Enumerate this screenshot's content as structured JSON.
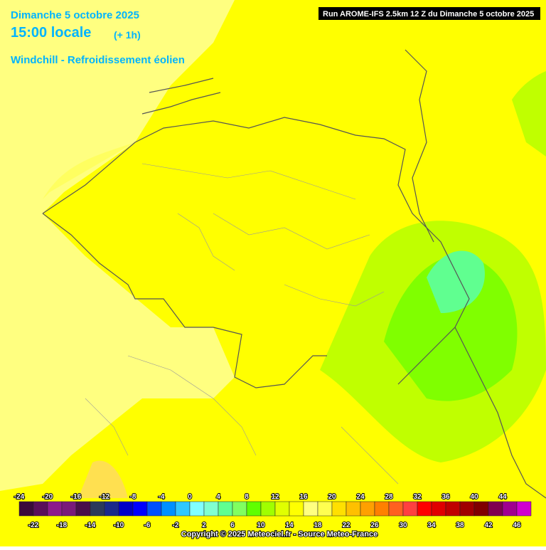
{
  "header": {
    "date": "Dimanche 5 octobre 2025",
    "time": "15:00 locale",
    "offset": "(+ 1h)",
    "parameter": "Windchill - Refroidissement éolien",
    "run": "Run AROME-IFS 2.5km 12 Z du Dimanche 5 octobre 2025"
  },
  "legend": {
    "labels": [
      -24,
      -22,
      -20,
      -18,
      -16,
      -14,
      -12,
      -10,
      -8,
      -6,
      -4,
      -2,
      0,
      2,
      4,
      6,
      8,
      10,
      12,
      14,
      16,
      18,
      20,
      22,
      24,
      26,
      28,
      30,
      32,
      34,
      36,
      38,
      40,
      42,
      44,
      46
    ],
    "colors": [
      "#3b0a3b",
      "#5a0f5a",
      "#8c1a8c",
      "#7a1a7a",
      "#4a0f4a",
      "#2b3a5a",
      "#1a2a8a",
      "#0000c8",
      "#0000ff",
      "#0050ff",
      "#0090ff",
      "#30c8ff",
      "#80ffff",
      "#80ffd0",
      "#60ff90",
      "#80ff60",
      "#60ff00",
      "#a0ff00",
      "#e0ff00",
      "#ffff00",
      "#ffff80",
      "#ffff50",
      "#ffe000",
      "#ffc000",
      "#ffa000",
      "#ff8000",
      "#ff6020",
      "#ff4040",
      "#ff0000",
      "#e00000",
      "#c00000",
      "#a00000",
      "#800000",
      "#800050",
      "#a00090",
      "#d000d0"
    ]
  },
  "footer": {
    "copyright": "Copyright © 2025 Meteociel.fr - Source Meteo-France"
  }
}
